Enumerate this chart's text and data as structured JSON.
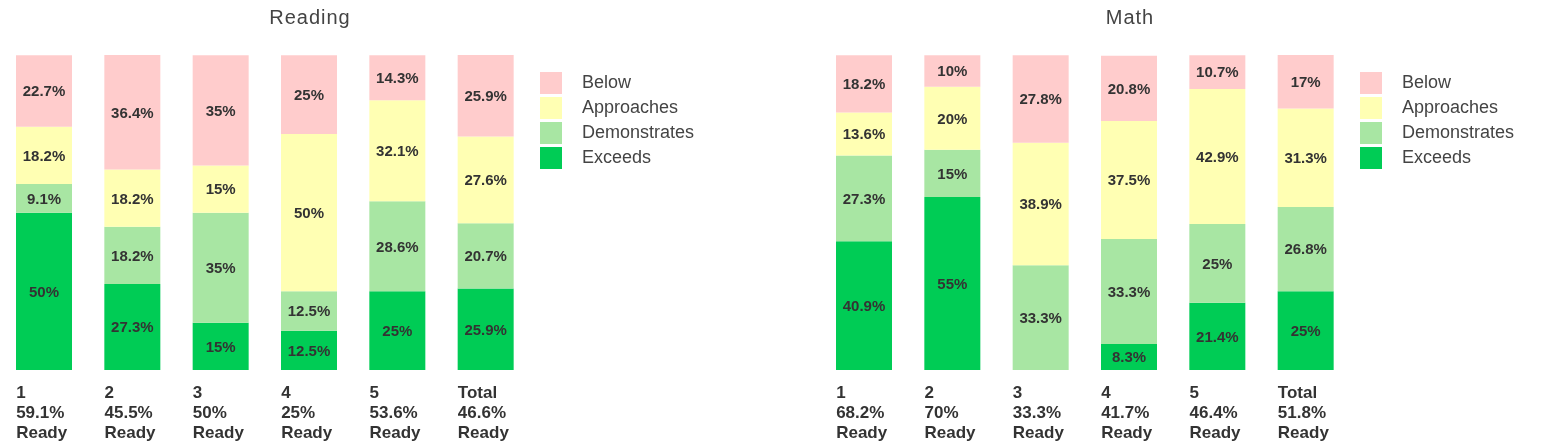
{
  "chart_data": [
    {
      "type": "bar",
      "title": "Reading",
      "stacked": true,
      "legend": "right",
      "grid": false,
      "categories": [
        "1\n59.1%\nReady",
        "2\n45.5%\nReady",
        "3\n50%\nReady",
        "4\n25%\nReady",
        "5\n53.6%\nReady",
        "Total\n46.6%\nReady"
      ],
      "series": [
        {
          "name": "Exceeds",
          "color": "#00cc55",
          "values": [
            50,
            27.3,
            15,
            12.5,
            25,
            25.9
          ],
          "value_labels": [
            "50%",
            "27.3%",
            "15%",
            "12.5%",
            "25%",
            "25.9%"
          ]
        },
        {
          "name": "Demonstrates",
          "color": "#a8e6a3",
          "values": [
            9.1,
            18.2,
            35,
            12.5,
            28.6,
            20.7
          ],
          "value_labels": [
            "9.1%",
            "18.2%",
            "35%",
            "12.5%",
            "28.6%",
            "20.7%"
          ]
        },
        {
          "name": "Approaches",
          "color": "#ffffb3",
          "values": [
            18.2,
            18.2,
            15,
            50,
            32.1,
            27.6
          ],
          "value_labels": [
            "18.2%",
            "18.2%",
            "15%",
            "50%",
            "32.1%",
            "27.6%"
          ]
        },
        {
          "name": "Below",
          "color": "#ffcccc",
          "values": [
            22.7,
            36.4,
            35,
            25,
            14.3,
            25.9
          ],
          "value_labels": [
            "22.7%",
            "36.4%",
            "35%",
            "25%",
            "14.3%",
            "25.9%"
          ]
        }
      ]
    },
    {
      "type": "bar",
      "title": "Math",
      "stacked": true,
      "legend": "right",
      "grid": false,
      "categories": [
        "1\n68.2%\nReady",
        "2\n70%\nReady",
        "3\n33.3%\nReady",
        "4\n41.7%\nReady",
        "5\n46.4%\nReady",
        "Total\n51.8%\nReady"
      ],
      "series": [
        {
          "name": "Exceeds",
          "color": "#00cc55",
          "values": [
            40.9,
            55,
            null,
            8.3,
            21.4,
            25
          ],
          "value_labels": [
            "40.9%",
            "55%",
            null,
            "8.3%",
            "21.4%",
            "25%"
          ]
        },
        {
          "name": "Demonstrates",
          "color": "#a8e6a3",
          "values": [
            27.3,
            15,
            33.3,
            33.3,
            25,
            26.8
          ],
          "value_labels": [
            "27.3%",
            "15%",
            "33.3%",
            "33.3%",
            "25%",
            "26.8%"
          ]
        },
        {
          "name": "Approaches",
          "color": "#ffffb3",
          "values": [
            13.6,
            20,
            38.9,
            37.5,
            42.9,
            31.3
          ],
          "value_labels": [
            "13.6%",
            "20%",
            "38.9%",
            "37.5%",
            "42.9%",
            "31.3%"
          ]
        },
        {
          "name": "Below",
          "color": "#ffcccc",
          "values": [
            18.2,
            10,
            27.8,
            20.8,
            10.7,
            17
          ],
          "value_labels": [
            "18.2%",
            "10%",
            "27.8%",
            "20.8%",
            "10.7%",
            "17%"
          ]
        }
      ]
    }
  ]
}
